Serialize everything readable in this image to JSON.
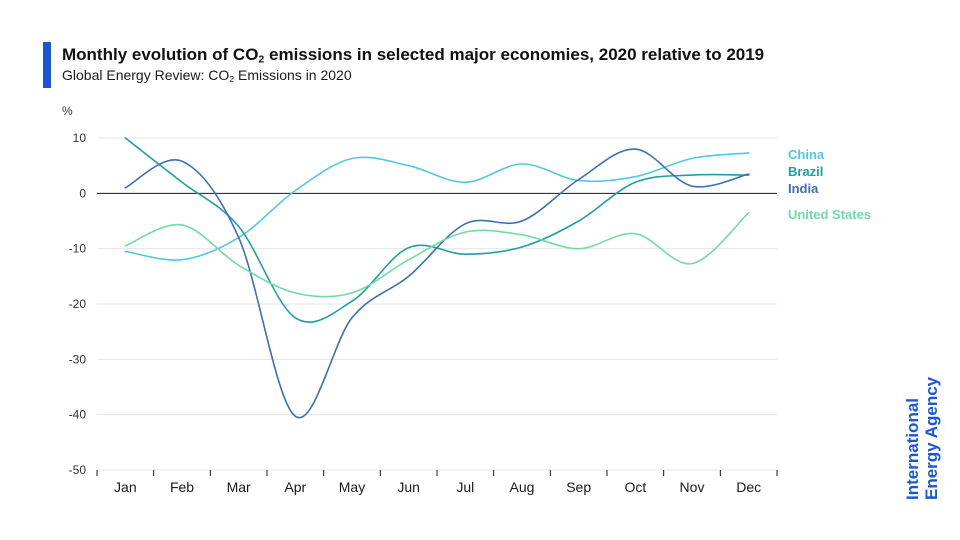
{
  "header": {
    "title_pre": "Monthly evolution of CO",
    "title_sub": "2",
    "title_post": " emissions in selected major economies, 2020 relative to 2019",
    "subtitle_pre": "Global Energy Review: CO",
    "subtitle_sub": "2",
    "subtitle_post": " Emissions in 2020",
    "accent_color": "#1a56db"
  },
  "logo": {
    "line1": "International",
    "line2": "Energy Agency",
    "color": "#1a56db"
  },
  "chart_data": {
    "type": "line",
    "title": "Monthly evolution of CO2 emissions in selected major economies, 2020 relative to 2019",
    "subtitle": "Global Energy Review: CO2 Emissions in 2020",
    "ylabel": "%",
    "xlabel": "",
    "ylim": [
      -50,
      10
    ],
    "yticks": [
      10,
      0,
      -10,
      -20,
      -30,
      -40,
      -50
    ],
    "categories": [
      "Jan",
      "Feb",
      "Mar",
      "Apr",
      "May",
      "Jun",
      "Jul",
      "Aug",
      "Sep",
      "Oct",
      "Nov",
      "Dec"
    ],
    "grid": true,
    "legend_position": "right",
    "series": [
      {
        "name": "China",
        "color": "#4fc8e6",
        "values": [
          -10.5,
          -12,
          -8,
          0.5,
          6.3,
          5,
          2,
          5.3,
          2.3,
          3,
          6.3,
          7.3
        ]
      },
      {
        "name": "Brazil",
        "color": "#1e9ea5",
        "values": [
          10,
          2,
          -6,
          -22.5,
          -19.5,
          -9.8,
          -11,
          -9.7,
          -5,
          2,
          3.3,
          3.3
        ]
      },
      {
        "name": "India",
        "color": "#3a6fb5",
        "values": [
          1,
          5.8,
          -8,
          -40.3,
          -22.5,
          -15,
          -5.5,
          -5,
          2.5,
          8,
          1.3,
          3.5
        ]
      },
      {
        "name": "United States",
        "color": "#6fdca2",
        "values": [
          -9.5,
          -5.7,
          -13,
          -18,
          -18,
          -12,
          -7,
          -7.5,
          -10,
          -7.3,
          -12.7,
          -3.5
        ]
      }
    ]
  }
}
